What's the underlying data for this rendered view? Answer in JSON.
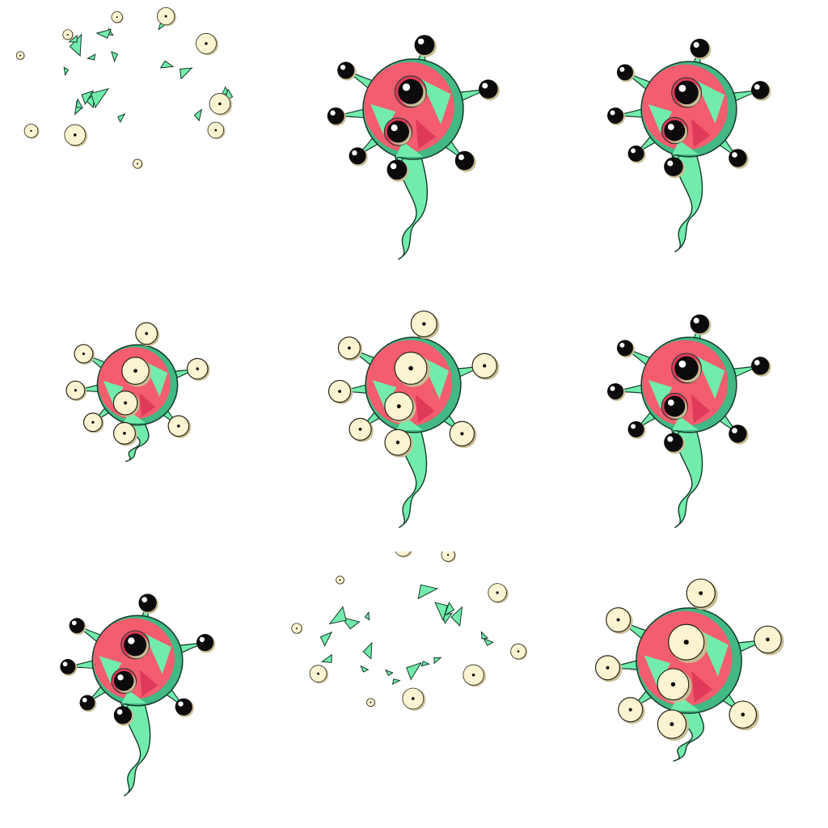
{
  "sprite_sheet": {
    "grid": {
      "columns": 3,
      "rows": 3
    },
    "palette": {
      "body_red": "#f45d6f",
      "body_red_shade": "#e03a5a",
      "skin_green": "#72ecac",
      "skin_green_shade": "#42b884",
      "outline": "#143a2a",
      "eye_dark": "#0d0a0d",
      "eye_cream": "#faf4d2",
      "eye_cream_shade": "#c8bd94",
      "highlight": "#ffffff"
    },
    "frames": [
      {
        "name": "burst-start",
        "kind": "burst",
        "eyes": "cream"
      },
      {
        "name": "idle-a",
        "kind": "monster",
        "eyes": "dark",
        "tail": "long",
        "scale": 1.0
      },
      {
        "name": "idle-b",
        "kind": "monster",
        "eyes": "dark",
        "tail": "long",
        "scale": 0.95
      },
      {
        "name": "eyes-open-small",
        "kind": "monster",
        "eyes": "cream",
        "tail": "short",
        "scale": 0.8
      },
      {
        "name": "eyes-open",
        "kind": "monster",
        "eyes": "cream",
        "tail": "long",
        "scale": 0.95
      },
      {
        "name": "idle-c",
        "kind": "monster",
        "eyes": "dark",
        "tail": "long",
        "scale": 0.95
      },
      {
        "name": "idle-d",
        "kind": "monster",
        "eyes": "dark",
        "tail": "long",
        "scale": 0.9
      },
      {
        "name": "burst-end",
        "kind": "burst",
        "eyes": "cream"
      },
      {
        "name": "eyes-wide",
        "kind": "monster",
        "eyes": "cream",
        "tail": "short",
        "scale": 1.05
      }
    ]
  }
}
